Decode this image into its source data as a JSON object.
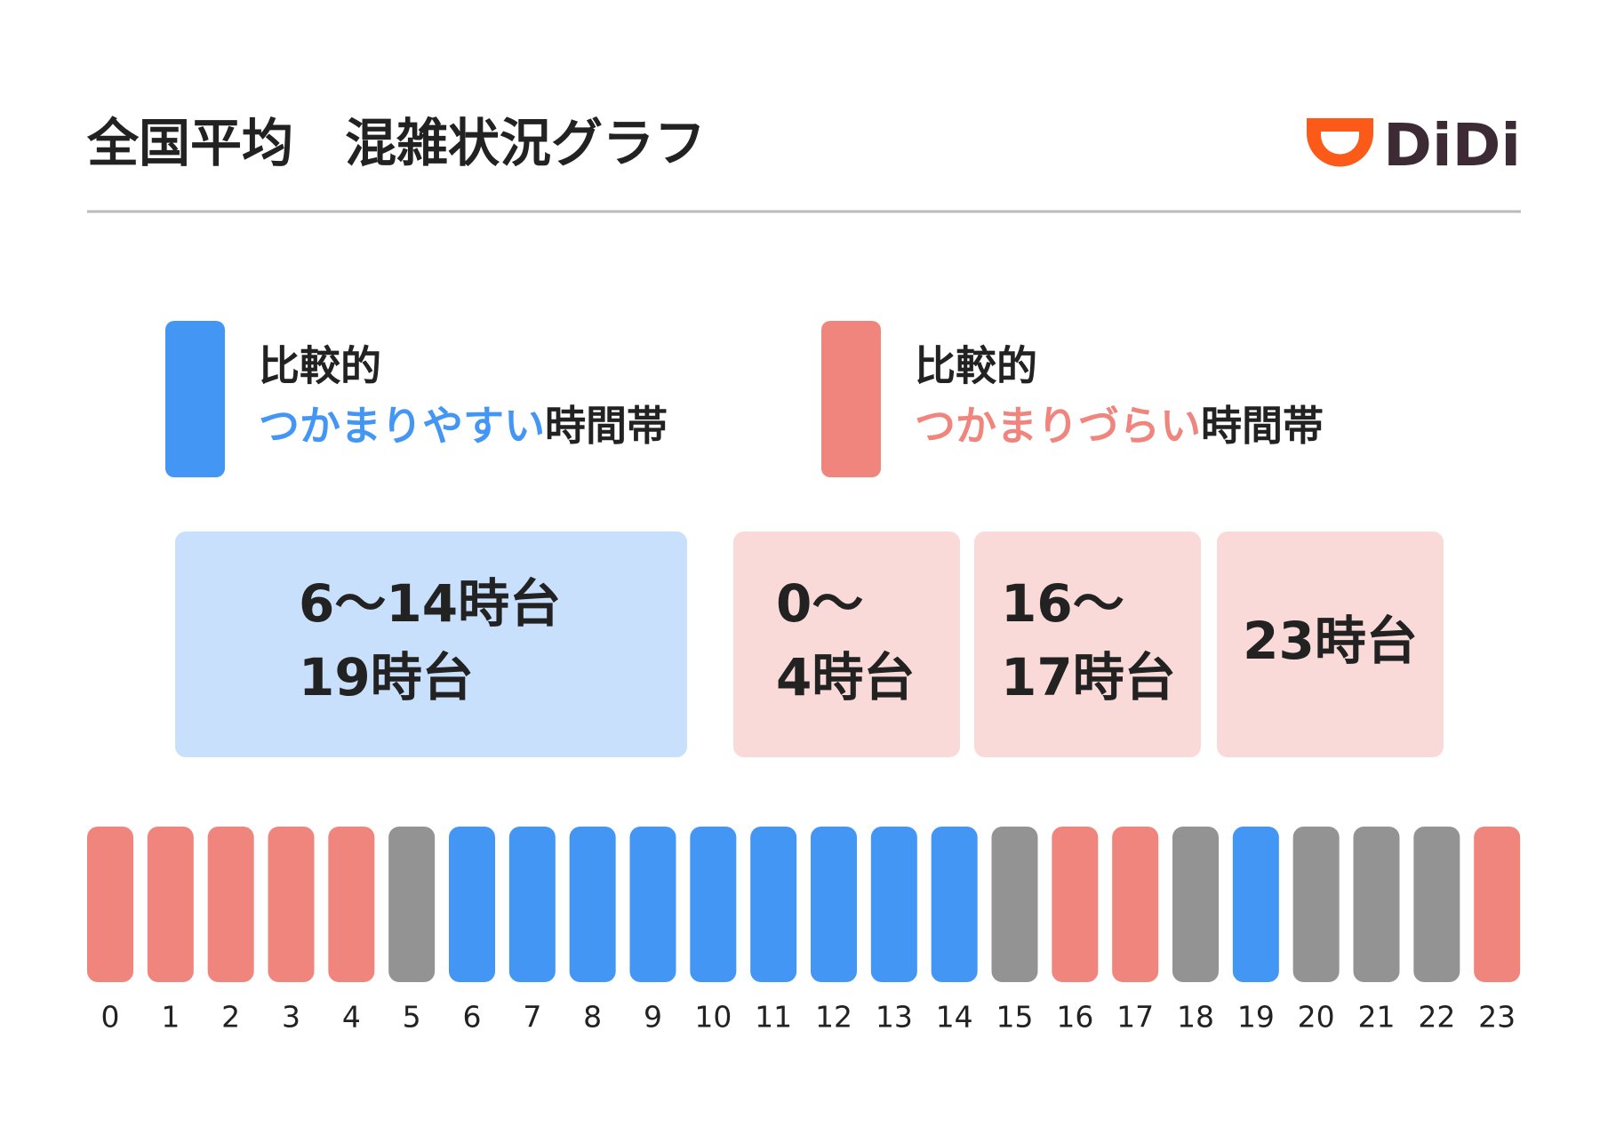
{
  "header": {
    "title": "全国平均　混雑状況グラフ",
    "logo": "DiDi"
  },
  "legend": [
    {
      "line1": "比較的",
      "highlight": "つかまりやすい",
      "suffix": "時間帯",
      "color": "#4496f5"
    },
    {
      "line1": "比較的",
      "highlight": "つかまりづらい",
      "suffix": "時間帯",
      "color": "#f0857e"
    }
  ],
  "boxes": [
    {
      "lines": [
        "6〜14時台",
        "19時台"
      ],
      "color": "#c8e0fb"
    },
    {
      "lines": [
        "0〜",
        "4時台"
      ],
      "color": "#f9dad9"
    },
    {
      "lines": [
        "16〜",
        "17時台"
      ],
      "color": "#f9dad9"
    },
    {
      "lines": [
        "23時台"
      ],
      "color": "#f9dad9"
    }
  ],
  "hours": [
    {
      "label": 0,
      "color": "#f0857e"
    },
    {
      "label": 1,
      "color": "#f0857e"
    },
    {
      "label": 2,
      "color": "#f0857e"
    },
    {
      "label": 3,
      "color": "#f0857e"
    },
    {
      "label": 4,
      "color": "#f0857e"
    },
    {
      "label": 5,
      "color": "#939393"
    },
    {
      "label": 6,
      "color": "#4496f5"
    },
    {
      "label": 7,
      "color": "#4496f5"
    },
    {
      "label": 8,
      "color": "#4496f5"
    },
    {
      "label": 9,
      "color": "#4496f5"
    },
    {
      "label": 10,
      "color": "#4496f5"
    },
    {
      "label": 11,
      "color": "#4496f5"
    },
    {
      "label": 12,
      "color": "#4496f5"
    },
    {
      "label": 13,
      "color": "#4496f5"
    },
    {
      "label": 14,
      "color": "#4496f5"
    },
    {
      "label": 15,
      "color": "#939393"
    },
    {
      "label": 16,
      "color": "#f0857e"
    },
    {
      "label": 17,
      "color": "#f0857e"
    },
    {
      "label": 18,
      "color": "#939393"
    },
    {
      "label": 19,
      "color": "#4496f5"
    },
    {
      "label": 20,
      "color": "#939393"
    },
    {
      "label": 21,
      "color": "#939393"
    },
    {
      "label": 22,
      "color": "#939393"
    },
    {
      "label": 23,
      "color": "#f0857e"
    }
  ]
}
